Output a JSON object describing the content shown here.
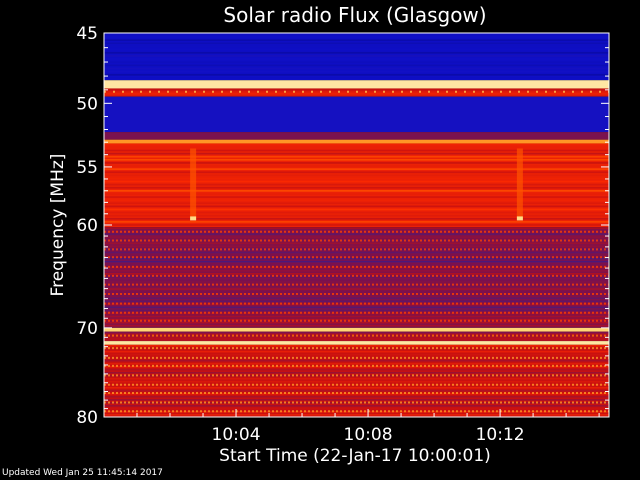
{
  "chart_data": {
    "type": "heatmap",
    "title": "Solar radio Flux (Glasgow)",
    "xlabel": "Start Time (22-Jan-17 10:00:01)",
    "ylabel": "Frequency [MHz]",
    "x_range_minutes": [
      0,
      15.3
    ],
    "y_range_mhz": [
      45,
      80
    ],
    "y_scale": "log",
    "x_ticks": [
      {
        "label": "10:04",
        "minute": 4
      },
      {
        "label": "10:08",
        "minute": 8
      },
      {
        "label": "10:12",
        "minute": 12
      }
    ],
    "y_ticks": [
      {
        "label": "45",
        "mhz": 45
      },
      {
        "label": "50",
        "mhz": 50
      },
      {
        "label": "55",
        "mhz": 55
      },
      {
        "label": "60",
        "mhz": 60
      },
      {
        "label": "70",
        "mhz": 70
      },
      {
        "label": "80",
        "mhz": 80
      }
    ],
    "colormap": [
      "#00005a",
      "#1010c8",
      "#3a1a8a",
      "#8a1040",
      "#c81010",
      "#ff2a00",
      "#ff7000",
      "#ffd060",
      "#fff4d0"
    ],
    "intensity_bands": [
      {
        "from_mhz": 45.0,
        "to_mhz": 48.3,
        "level": 0.12,
        "stripes": "dark"
      },
      {
        "from_mhz": 48.3,
        "to_mhz": 48.9,
        "level": 0.95
      },
      {
        "from_mhz": 48.9,
        "to_mhz": 49.5,
        "level": 0.55,
        "stripes": "dots"
      },
      {
        "from_mhz": 49.5,
        "to_mhz": 52.2,
        "level": 0.14
      },
      {
        "from_mhz": 52.2,
        "to_mhz": 52.8,
        "level": 0.35
      },
      {
        "from_mhz": 52.8,
        "to_mhz": 53.1,
        "level": 0.8
      },
      {
        "from_mhz": 53.1,
        "to_mhz": 60.2,
        "level": 0.58,
        "stripes": "light"
      },
      {
        "from_mhz": 60.2,
        "to_mhz": 70.0,
        "level": 0.36,
        "stripes": "dashes"
      },
      {
        "from_mhz": 70.0,
        "to_mhz": 70.4,
        "level": 0.9
      },
      {
        "from_mhz": 70.4,
        "to_mhz": 71.4,
        "level": 0.45,
        "stripes": "dashes"
      },
      {
        "from_mhz": 71.4,
        "to_mhz": 71.8,
        "level": 0.95
      },
      {
        "from_mhz": 71.8,
        "to_mhz": 80.0,
        "level": 0.5,
        "stripes": "dashes"
      }
    ],
    "bright_bursts": [
      {
        "minute": 2.7,
        "from_mhz": 53.5,
        "to_mhz": 59.5
      },
      {
        "minute": 12.6,
        "from_mhz": 53.5,
        "to_mhz": 59.5
      }
    ]
  },
  "footer": {
    "updated": "Updated Wed Jan 25 11:45:14 2017"
  }
}
